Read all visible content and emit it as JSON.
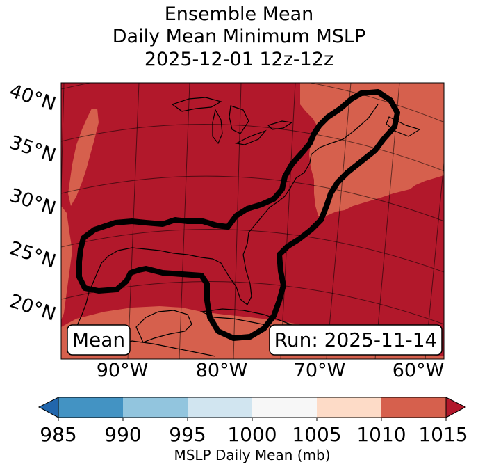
{
  "title": {
    "line1": "Ensemble Mean",
    "line2": "Daily Mean Minimum MSLP",
    "line3": "2025-12-01 12z-12z"
  },
  "map": {
    "lat_labels": [
      "40°N",
      "35°N",
      "30°N",
      "25°N",
      "20°N"
    ],
    "lon_labels": [
      "90°W",
      "80°W",
      "70°W",
      "60°W"
    ],
    "mean_box": "Mean",
    "run_box": "Run: 2025-11-14",
    "colors": {
      "band_1010_1015": "#b2182b",
      "band_1005_1010": "#d6604d",
      "contour": "#000000"
    }
  },
  "colorbar": {
    "label": "MSLP Daily Mean (mb)",
    "ticks": [
      "985",
      "990",
      "995",
      "1000",
      "1005",
      "1010",
      "1015"
    ],
    "colors": [
      "#2166ac",
      "#4393c3",
      "#92c5de",
      "#d1e5f0",
      "#f7f7f7",
      "#fddbc7",
      "#d6604d",
      "#b2182b"
    ]
  }
}
